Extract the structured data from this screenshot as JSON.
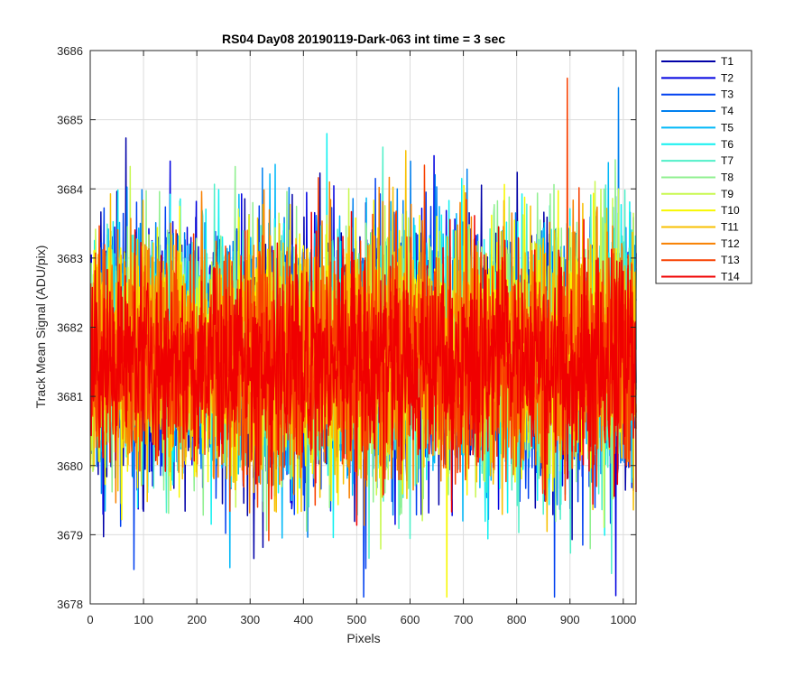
{
  "window": {
    "title": ""
  },
  "chart_data": {
    "type": "line",
    "title": "RS04 Day08 20190119-Dark-063 int time = 3 sec",
    "xlabel": "Pixels",
    "ylabel": "Track Mean Signal (ADU/pix)",
    "xlim": [
      0,
      1024
    ],
    "ylim": [
      3678,
      3686
    ],
    "x_ticks": [
      0,
      100,
      200,
      300,
      400,
      500,
      600,
      700,
      800,
      900,
      1000
    ],
    "y_ticks": [
      3678,
      3679,
      3680,
      3681,
      3682,
      3683,
      3684,
      3685,
      3686
    ],
    "grid": true,
    "legend_position": "outside-right",
    "x_points": 1024,
    "series": [
      {
        "name": "T1",
        "color": "#0000a8",
        "mean": 3681.6,
        "spread": 0.85
      },
      {
        "name": "T2",
        "color": "#0000e0",
        "mean": 3681.6,
        "spread": 0.85
      },
      {
        "name": "T3",
        "color": "#0040f0",
        "mean": 3681.6,
        "spread": 0.85
      },
      {
        "name": "T4",
        "color": "#0080f0",
        "mean": 3681.6,
        "spread": 0.85
      },
      {
        "name": "T5",
        "color": "#00b8f8",
        "mean": 3681.6,
        "spread": 0.85
      },
      {
        "name": "T6",
        "color": "#10f0f0",
        "mean": 3681.6,
        "spread": 0.85
      },
      {
        "name": "T7",
        "color": "#50f0c8",
        "mean": 3681.6,
        "spread": 0.85
      },
      {
        "name": "T8",
        "color": "#90f090",
        "mean": 3681.6,
        "spread": 0.85
      },
      {
        "name": "T9",
        "color": "#c8f850",
        "mean": 3681.6,
        "spread": 0.85
      },
      {
        "name": "T10",
        "color": "#f8f800",
        "mean": 3681.6,
        "spread": 0.85
      },
      {
        "name": "T11",
        "color": "#f8c000",
        "mean": 3681.6,
        "spread": 0.85
      },
      {
        "name": "T12",
        "color": "#f88000",
        "mean": 3681.6,
        "spread": 0.85
      },
      {
        "name": "T13",
        "color": "#f84000",
        "mean": 3681.5,
        "spread": 0.8
      },
      {
        "name": "T14",
        "color": "#f00000",
        "mean": 3681.5,
        "spread": 0.75
      }
    ]
  }
}
